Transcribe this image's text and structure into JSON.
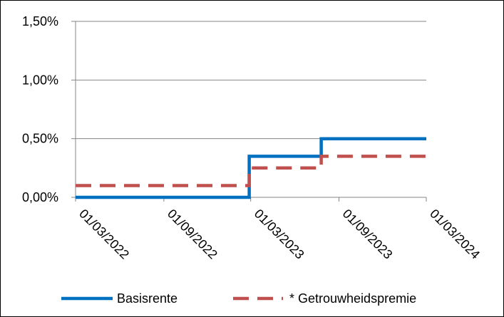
{
  "chart_data": {
    "type": "line",
    "title": "",
    "xlabel": "",
    "ylabel": "",
    "y_tick_labels": [
      "0,00%",
      "0,50%",
      "1,00%",
      "1,50%"
    ],
    "y_ticks": [
      0,
      0.5,
      1.0,
      1.5
    ],
    "ylim": [
      0,
      1.5
    ],
    "x_tick_labels": [
      "01/03/2022",
      "01/09/2022",
      "01/03/2023",
      "01/09/2023",
      "01/03/2024"
    ],
    "x_ticks": [
      "2022-03-01",
      "2022-09-01",
      "2023-03-01",
      "2023-09-01",
      "2024-03-01"
    ],
    "xlim": [
      "2022-03-01",
      "2024-03-01"
    ],
    "grid": "horizontal",
    "legend_position": "bottom",
    "series": [
      {
        "name": "Basisrente",
        "color": "#0070c0",
        "style": "solid",
        "step": true,
        "points": [
          {
            "x": "2022-03-01",
            "y": 0.0
          },
          {
            "x": "2023-02-26",
            "y": 0.0
          },
          {
            "x": "2023-02-26",
            "y": 0.35
          },
          {
            "x": "2023-07-26",
            "y": 0.35
          },
          {
            "x": "2023-07-26",
            "y": 0.5
          },
          {
            "x": "2024-03-01",
            "y": 0.5
          }
        ]
      },
      {
        "name": "* Getrouwheidspremie",
        "color": "#c0504d",
        "style": "dashed",
        "step": true,
        "points": [
          {
            "x": "2022-03-01",
            "y": 0.1
          },
          {
            "x": "2023-02-26",
            "y": 0.1
          },
          {
            "x": "2023-02-26",
            "y": 0.25
          },
          {
            "x": "2023-07-26",
            "y": 0.25
          },
          {
            "x": "2023-07-26",
            "y": 0.35
          },
          {
            "x": "2024-03-01",
            "y": 0.35
          }
        ]
      }
    ]
  }
}
